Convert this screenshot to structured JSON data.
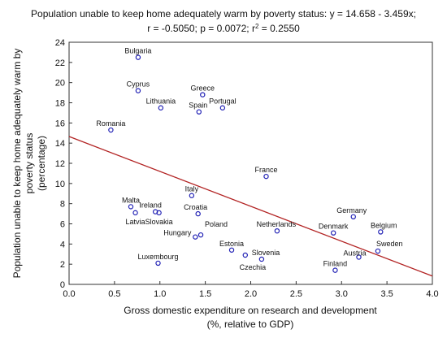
{
  "chart_data": {
    "type": "scatter",
    "title_lines": [
      "Population unable to keep home adequately warm by poverty status:   y = 14.658 - 3.459x;",
      "r = -0.5050; p = 0.0072; r² = 0.2550"
    ],
    "xlabel_lines": [
      "Gross domestic expenditure on research and development",
      "(%, relative to GDP)"
    ],
    "ylabel_lines": [
      "Population unable to keep home adequately warm by",
      "poverty status",
      "(percentage)"
    ],
    "xlim": [
      0.0,
      4.0
    ],
    "ylim": [
      0,
      24
    ],
    "xticks": [
      0.0,
      0.5,
      1.0,
      1.5,
      2.0,
      2.5,
      3.0,
      3.5,
      4.0
    ],
    "xtick_labels": [
      "0.0",
      "0.5",
      "1.0",
      "1.5",
      "2.0",
      "2.5",
      "3.0",
      "3.5",
      "4.0"
    ],
    "yticks": [
      0,
      2,
      4,
      6,
      8,
      10,
      12,
      14,
      16,
      18,
      20,
      22,
      24
    ],
    "ytick_labels": [
      "0",
      "2",
      "4",
      "6",
      "8",
      "10",
      "12",
      "14",
      "16",
      "18",
      "20",
      "22",
      "24"
    ],
    "grid": false,
    "regression": {
      "intercept": 14.658,
      "slope": -3.459,
      "color": "#b22222"
    },
    "marker_color": "#1f1fb4",
    "points": [
      {
        "label": "Bulgaria",
        "x": 0.76,
        "y": 22.5
      },
      {
        "label": "Cyprus",
        "x": 0.76,
        "y": 19.2
      },
      {
        "label": "Greece",
        "x": 1.47,
        "y": 18.8
      },
      {
        "label": "Lithuania",
        "x": 1.01,
        "y": 17.5
      },
      {
        "label": "Spain",
        "x": 1.43,
        "y": 17.1
      },
      {
        "label": "Portugal",
        "x": 1.69,
        "y": 17.5
      },
      {
        "label": "Romania",
        "x": 0.46,
        "y": 15.3
      },
      {
        "label": "France",
        "x": 2.17,
        "y": 10.7
      },
      {
        "label": "Italy",
        "x": 1.35,
        "y": 8.8
      },
      {
        "label": "Malta",
        "x": 0.68,
        "y": 7.7
      },
      {
        "label": "Ireland",
        "x": 0.95,
        "y": 7.2
      },
      {
        "label": "Latvia",
        "x": 0.73,
        "y": 7.1
      },
      {
        "label": "Slovakia",
        "x": 0.99,
        "y": 7.1
      },
      {
        "label": "Croatia",
        "x": 1.42,
        "y": 7.0
      },
      {
        "label": "Germany",
        "x": 3.13,
        "y": 6.7
      },
      {
        "label": "Hungary",
        "x": 1.39,
        "y": 4.7
      },
      {
        "label": "Poland",
        "x": 1.45,
        "y": 4.9
      },
      {
        "label": "Netherlands",
        "x": 2.29,
        "y": 5.3
      },
      {
        "label": "Denmark",
        "x": 2.91,
        "y": 5.1
      },
      {
        "label": "Belgium",
        "x": 3.43,
        "y": 5.2
      },
      {
        "label": "Estonia",
        "x": 1.79,
        "y": 3.4
      },
      {
        "label": "Slovenia",
        "x": 1.94,
        "y": 2.9
      },
      {
        "label": "Czechia",
        "x": 2.12,
        "y": 2.5
      },
      {
        "label": "Sweden",
        "x": 3.4,
        "y": 3.3
      },
      {
        "label": "Austria",
        "x": 3.19,
        "y": 2.7
      },
      {
        "label": "Luxembourg",
        "x": 0.98,
        "y": 2.1
      },
      {
        "label": "Finland",
        "x": 2.93,
        "y": 1.4
      }
    ]
  }
}
